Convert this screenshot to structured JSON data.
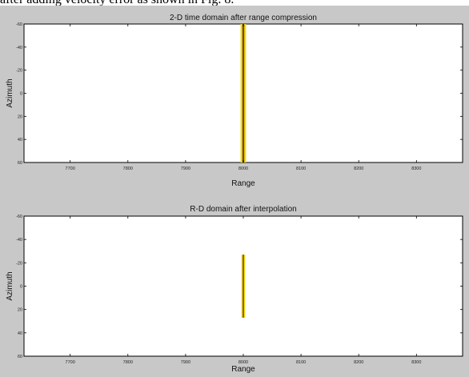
{
  "caption_text": "after adding velocity error as shown in Fig. 8.",
  "chart_data": [
    {
      "type": "heatmap",
      "title": "2-D time domain after range compression",
      "xlabel": "Range",
      "ylabel": "Azimuth",
      "xlim": [
        7620,
        8380
      ],
      "ylim": [
        -60,
        60
      ],
      "y_reversed": true,
      "xticks": [
        7700,
        7800,
        7900,
        8000,
        8100,
        8200,
        8300
      ],
      "yticks": [
        -60,
        -40,
        -20,
        0,
        20,
        40,
        60
      ],
      "xtick_labels": [
        "7700",
        "7800",
        "7900",
        "8000",
        "8100",
        "8200",
        "8300"
      ],
      "ytick_labels": [
        "-60",
        "-40",
        "-20",
        "0",
        "20",
        "40",
        "60"
      ],
      "features": [
        {
          "shape": "vertical-line",
          "x": 8000,
          "y_from": -60,
          "y_to": 60,
          "halo_width": 6,
          "core_width": 2.4,
          "halo_color": "#f2dc1a",
          "core_color": "#7a4a00"
        }
      ],
      "background": "#ffffff",
      "grid": false
    },
    {
      "type": "heatmap",
      "title": "R-D domain after interpolation",
      "xlabel": "Range",
      "ylabel": "Azimuth",
      "xlim": [
        7620,
        8380
      ],
      "ylim": [
        -60,
        60
      ],
      "y_reversed": true,
      "xticks": [
        7700,
        7800,
        7900,
        8000,
        8100,
        8200,
        8300
      ],
      "yticks": [
        -60,
        -40,
        -20,
        0,
        20,
        40,
        60
      ],
      "xtick_labels": [
        "7700",
        "7800",
        "7900",
        "8000",
        "8100",
        "8200",
        "8300"
      ],
      "ytick_labels": [
        "-60",
        "-40",
        "-20",
        "0",
        "20",
        "40",
        "60"
      ],
      "features": [
        {
          "shape": "vertical-line",
          "x": 8000,
          "y_from": -27,
          "y_to": 27,
          "halo_width": 4,
          "core_width": 1.6,
          "halo_color": "#f2dc1a",
          "core_color": "#7a4a00"
        }
      ],
      "background": "#ffffff",
      "grid": false
    }
  ]
}
